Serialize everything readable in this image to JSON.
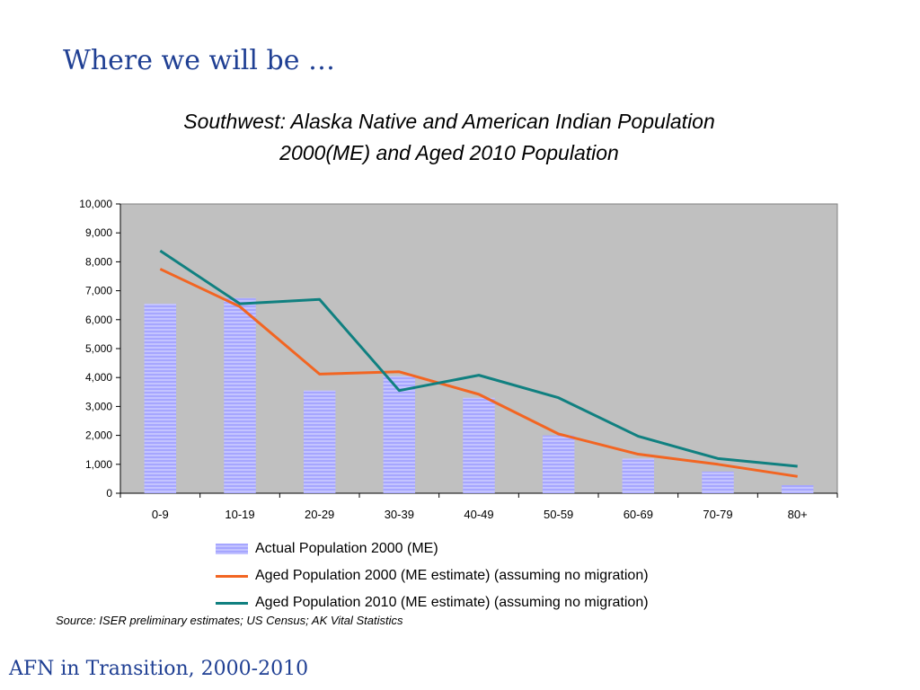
{
  "slide_title": "Where we will be …",
  "footer": "AFN in Transition, 2000-2010",
  "source": "Source:  ISER preliminary estimates; US Census; AK Vital Statistics",
  "chart_data": {
    "type": "bar",
    "title_line1": "Southwest: Alaska Native and American Indian Population",
    "title_line2": "2000(ME) and Aged 2010 Population",
    "categories": [
      "0-9",
      "10-19",
      "20-29",
      "30-39",
      "40-49",
      "50-59",
      "60-69",
      "70-79",
      "80+"
    ],
    "ylim": [
      0,
      10000
    ],
    "yticks": [
      0,
      1000,
      2000,
      3000,
      4000,
      5000,
      6000,
      7000,
      8000,
      9000,
      10000
    ],
    "ytick_labels": [
      "0",
      "1,000",
      "2,000",
      "3,000",
      "4,000",
      "5,000",
      "6,000",
      "7,000",
      "8,000",
      "9,000",
      "10,000"
    ],
    "grid": false,
    "plot_background": "#c0c0c0",
    "legend_position": "bottom",
    "series": [
      {
        "name": "Actual Population 2000 (ME)",
        "type": "bar",
        "color": "#a6a6ff",
        "values": [
          6550,
          6750,
          3550,
          4050,
          3300,
          2000,
          1200,
          750,
          280
        ]
      },
      {
        "name": "Aged Population 2000 (ME estimate) (assuming no migration)",
        "type": "line",
        "color": "#f26522",
        "values": [
          7750,
          6450,
          4120,
          4200,
          3420,
          2050,
          1350,
          1000,
          580
        ]
      },
      {
        "name": "Aged Population 2010 (ME estimate) (assuming no migration)",
        "type": "line",
        "color": "#108080",
        "values": [
          8380,
          6550,
          6700,
          3550,
          4080,
          3300,
          1970,
          1200,
          930
        ]
      }
    ]
  }
}
